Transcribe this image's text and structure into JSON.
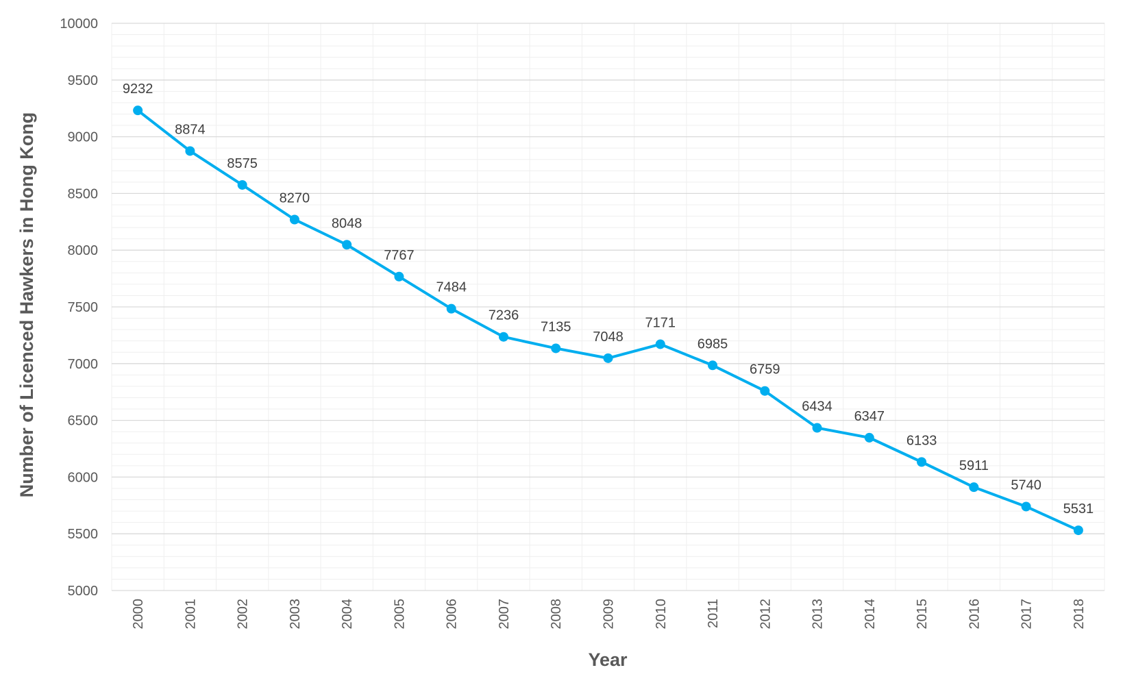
{
  "chart_data": {
    "type": "line",
    "title": "",
    "xlabel": "Year",
    "ylabel": "Number of Licenced Hawkers in Hong Kong",
    "ylim": [
      5000,
      10000
    ],
    "y_major_step": 500,
    "y_minor_step": 100,
    "grid": true,
    "legend": "none",
    "categories": [
      "2000",
      "2001",
      "2002",
      "2003",
      "2004",
      "2005",
      "2006",
      "2007",
      "2008",
      "2009",
      "2010",
      "2011",
      "2012",
      "2013",
      "2014",
      "2015",
      "2016",
      "2017",
      "2018"
    ],
    "series": [
      {
        "name": "Licenced Hawkers",
        "color": "#00AEEF",
        "values": [
          9232,
          8874,
          8575,
          8270,
          8048,
          7767,
          7484,
          7236,
          7135,
          7048,
          7171,
          6985,
          6759,
          6434,
          6347,
          6133,
          5911,
          5740,
          5531
        ]
      }
    ],
    "y_ticks": [
      "5000",
      "5500",
      "6000",
      "6500",
      "7000",
      "7500",
      "8000",
      "8500",
      "9000",
      "9500",
      "10000"
    ],
    "colors": {
      "major_grid": "#D9D9D9",
      "minor_grid": "#EFEFEF",
      "line": "#00AEEF"
    }
  }
}
